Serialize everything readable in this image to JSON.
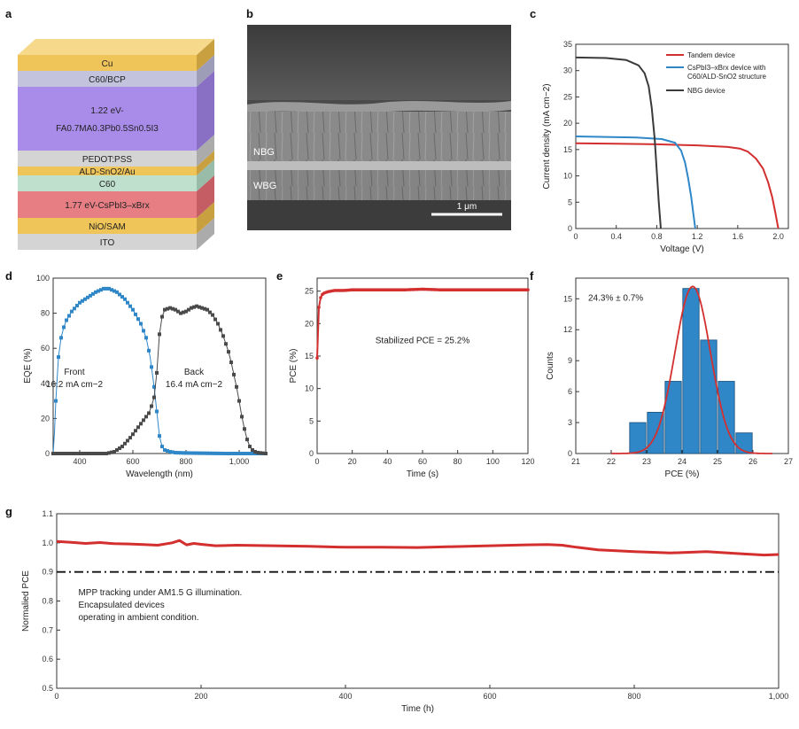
{
  "panels": {
    "a": "a",
    "b": "b",
    "c": "c",
    "d": "d",
    "e": "e",
    "f": "f",
    "g": "g"
  },
  "colors": {
    "red": "#d32f2f",
    "blue": "#2f87c8",
    "dark": "#3a3a3a",
    "gray_marker": "#4a4a4a"
  },
  "stack": {
    "layers": [
      {
        "label": "Cu",
        "color": "#efc458",
        "side": "#c9a040"
      },
      {
        "label": "C60/BCP",
        "color": "#c3c3dd",
        "side": "#9d9db8"
      },
      {
        "label": "1.22 eV-",
        "label2": "FA0.7MA0.3Pb0.5Sn0.5I3",
        "color": "#a98ce9",
        "side": "#8a70c4"
      },
      {
        "label": "PEDOT:PSS",
        "color": "#d4d4d4",
        "side": "#ababab"
      },
      {
        "label": "ALD-SnO2/Au",
        "color": "#efc458",
        "side": "#c9a040"
      },
      {
        "label": "C60",
        "color": "#bfe0cc",
        "side": "#98bca8"
      },
      {
        "label": "1.77 eV-CsPbI3–xBrx",
        "color": "#e77e84",
        "side": "#c45e64"
      },
      {
        "label": "NiO/SAM",
        "color": "#efc458",
        "side": "#c9a040"
      },
      {
        "label": "ITO",
        "color": "#d4d4d4",
        "side": "#ababab"
      }
    ]
  },
  "sem": {
    "nbg": "NBG",
    "wbg": "WBG",
    "scale": "1 μm"
  },
  "chart_data": [
    {
      "id": "c",
      "type": "line",
      "title": "",
      "xlabel": "Voltage (V)",
      "ylabel": "Current density (mA cm−2)",
      "xlim": [
        0,
        2.1
      ],
      "ylim": [
        0,
        35
      ],
      "xticks": [
        0,
        0.4,
        0.8,
        1.2,
        1.6,
        2.0
      ],
      "xtick_labels": [
        "0",
        "0.4",
        "0.8",
        "1.2",
        "1.6",
        "2.0"
      ],
      "yticks": [
        0,
        5,
        10,
        15,
        20,
        25,
        30,
        35
      ],
      "series": [
        {
          "name": "Tandem device",
          "x": [
            0,
            0.4,
            0.8,
            1.2,
            1.5,
            1.62,
            1.7,
            1.78,
            1.85,
            1.9,
            1.94,
            1.97,
            2.0
          ],
          "y": [
            16.2,
            16.1,
            16.0,
            15.8,
            15.5,
            15.2,
            14.6,
            13.3,
            11.4,
            8.8,
            6.0,
            3.2,
            0
          ]
        },
        {
          "name": "CsPbI3–xBrx device with C60/ALD-SnO2 structure",
          "x": [
            0,
            0.3,
            0.6,
            0.85,
            0.98,
            1.04,
            1.08,
            1.11,
            1.14,
            1.16,
            1.18
          ],
          "y": [
            17.5,
            17.4,
            17.3,
            17.0,
            16.3,
            14.8,
            12.5,
            9.5,
            6.0,
            3.0,
            0
          ]
        },
        {
          "name": "NBG device",
          "x": [
            0,
            0.3,
            0.5,
            0.62,
            0.68,
            0.72,
            0.75,
            0.78,
            0.8,
            0.82,
            0.84
          ],
          "y": [
            32.5,
            32.4,
            32.0,
            31.0,
            29.5,
            27.0,
            23.0,
            17.0,
            11.0,
            5.0,
            0
          ]
        }
      ]
    },
    {
      "id": "d",
      "type": "line",
      "xlabel": "Wavelength (nm)",
      "ylabel": "EQE (%)",
      "xlim": [
        300,
        1100
      ],
      "ylim": [
        0,
        100
      ],
      "xticks": [
        400,
        600,
        800,
        1000
      ],
      "xtick_labels": [
        "400",
        "600",
        "800",
        "1,000"
      ],
      "yticks": [
        0,
        20,
        40,
        60,
        80,
        100
      ],
      "annotations": [
        {
          "text": "Front",
          "x": 380,
          "y": 45
        },
        {
          "text": "16.2 mA cm−2",
          "x": 380,
          "y": 38
        },
        {
          "text": "Back",
          "x": 830,
          "y": 45
        },
        {
          "text": "16.4 mA cm−2",
          "x": 830,
          "y": 38
        }
      ],
      "series": [
        {
          "name": "Front",
          "x": [
            300,
            305,
            310,
            320,
            330,
            340,
            350,
            370,
            400,
            430,
            460,
            490,
            510,
            540,
            570,
            600,
            630,
            650,
            665,
            680,
            690,
            700,
            710,
            720,
            740,
            760,
            800,
            850,
            900,
            950,
            1000,
            1050,
            1100
          ],
          "y": [
            0,
            12,
            30,
            55,
            66,
            72,
            76,
            81,
            86,
            89,
            92,
            94,
            94,
            92,
            88,
            82,
            74,
            66,
            55,
            38,
            24,
            10,
            4,
            2,
            1,
            0.5,
            0.3,
            0.2,
            0.1,
            0,
            0,
            0,
            0
          ]
        },
        {
          "name": "Back",
          "x": [
            300,
            400,
            500,
            530,
            560,
            590,
            620,
            640,
            660,
            670,
            680,
            690,
            700,
            710,
            720,
            740,
            760,
            780,
            800,
            820,
            840,
            860,
            880,
            900,
            920,
            940,
            960,
            970,
            980,
            990,
            1000,
            1010,
            1020,
            1030,
            1040,
            1050,
            1060,
            1070,
            1100
          ],
          "y": [
            0,
            0,
            0,
            1,
            4,
            9,
            15,
            19,
            23,
            27,
            32,
            46,
            68,
            78,
            82,
            83,
            82,
            80,
            81,
            83,
            84,
            83,
            82,
            79,
            74,
            67,
            58,
            52,
            45,
            38,
            30,
            21,
            14,
            8,
            4,
            2,
            1,
            0.5,
            0
          ]
        }
      ]
    },
    {
      "id": "e",
      "type": "line",
      "xlabel": "Time (s)",
      "ylabel": "PCE (%)",
      "xlim": [
        0,
        120
      ],
      "ylim": [
        0,
        27
      ],
      "xticks": [
        0,
        20,
        40,
        60,
        80,
        100,
        120
      ],
      "yticks": [
        0,
        5,
        10,
        15,
        20,
        25
      ],
      "annotation": "Stabilized PCE = 25.2%",
      "series": [
        {
          "name": "PCE",
          "x": [
            0,
            1,
            2,
            3,
            4,
            6,
            8,
            10,
            15,
            20,
            30,
            40,
            50,
            60,
            70,
            80,
            90,
            100,
            110,
            120
          ],
          "y": [
            14.7,
            22.5,
            24.0,
            24.5,
            24.7,
            24.9,
            25.0,
            25.1,
            25.1,
            25.2,
            25.2,
            25.2,
            25.2,
            25.3,
            25.2,
            25.2,
            25.2,
            25.2,
            25.2,
            25.2
          ]
        }
      ]
    },
    {
      "id": "f",
      "type": "bar",
      "xlabel": "PCE (%)",
      "ylabel": "Counts",
      "xlim": [
        21,
        27
      ],
      "ylim": [
        0,
        17
      ],
      "xticks": [
        21,
        22,
        23,
        24,
        25,
        26,
        27
      ],
      "yticks": [
        0,
        3,
        6,
        9,
        12,
        15
      ],
      "annotation": "24.3% ± 0.7%",
      "categories": [
        22.75,
        23.25,
        23.75,
        24.25,
        24.75,
        25.25,
        25.75
      ],
      "values": [
        3,
        4,
        7,
        16,
        11,
        7,
        2
      ],
      "fit": {
        "mean": 24.3,
        "sd": 0.5,
        "peak": 16.2
      }
    },
    {
      "id": "g",
      "type": "line",
      "xlabel": "Time (h)",
      "ylabel": "Normalied PCE",
      "xlim": [
        0,
        1000
      ],
      "ylim": [
        0.5,
        1.1
      ],
      "xticks": [
        0,
        200,
        400,
        600,
        800,
        1000
      ],
      "xtick_labels": [
        "0",
        "200",
        "400",
        "600",
        "800",
        "1,000"
      ],
      "yticks": [
        0.5,
        0.6,
        0.7,
        0.8,
        0.9,
        1.0,
        1.1
      ],
      "ytick_labels": [
        "0.5",
        "0.6",
        "0.7",
        "0.8",
        "0.9",
        "1.0",
        "1.1"
      ],
      "reference_line": 0.9,
      "annotations": [
        "MPP tracking under AM1.5 G illumination.",
        "Encapsulated devices",
        "operating in ambient condition."
      ],
      "series": [
        {
          "name": "Normalized PCE",
          "x": [
            0,
            20,
            40,
            60,
            80,
            100,
            120,
            140,
            160,
            170,
            180,
            190,
            200,
            220,
            250,
            300,
            350,
            400,
            450,
            500,
            550,
            600,
            650,
            680,
            700,
            720,
            750,
            800,
            850,
            900,
            950,
            980,
            1000
          ],
          "y": [
            1.005,
            1.002,
            0.998,
            1.001,
            0.997,
            0.996,
            0.994,
            0.992,
            1.0,
            1.008,
            0.993,
            0.998,
            0.995,
            0.99,
            0.992,
            0.99,
            0.988,
            0.985,
            0.985,
            0.984,
            0.987,
            0.99,
            0.993,
            0.994,
            0.992,
            0.985,
            0.976,
            0.97,
            0.965,
            0.97,
            0.962,
            0.958,
            0.96
          ]
        }
      ]
    }
  ]
}
